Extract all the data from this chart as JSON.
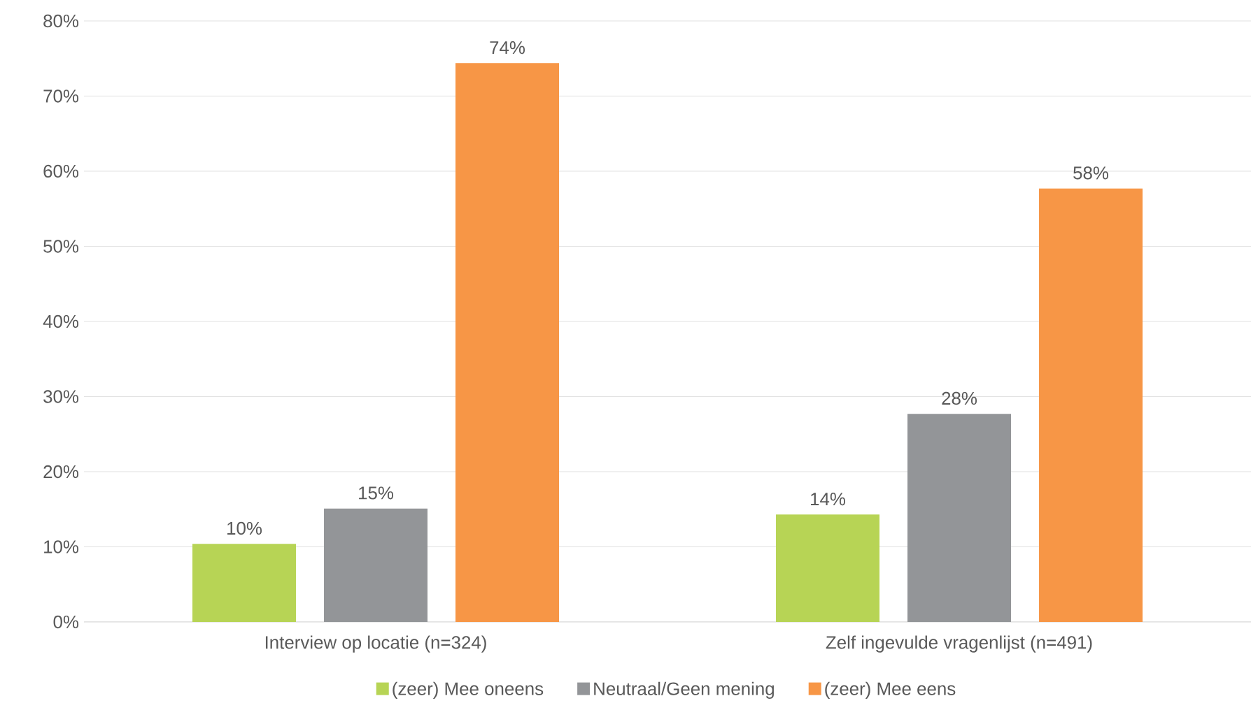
{
  "chart_data": {
    "type": "bar",
    "categories": [
      "Interview op locatie (n=324)",
      "Zelf ingevulde vragenlijst (n=491)"
    ],
    "series": [
      {
        "name": "(zeer) Mee oneens",
        "color": "#b7d455",
        "values": [
          10.4,
          14.3
        ],
        "value_labels": [
          "10%",
          "14%"
        ]
      },
      {
        "name": "Neutraal/Geen mening",
        "color": "#939598",
        "values": [
          15.1,
          27.7
        ],
        "value_labels": [
          "15%",
          "28%"
        ]
      },
      {
        "name": "(zeer) Mee eens",
        "color": "#f79646",
        "values": [
          74.4,
          57.7
        ],
        "value_labels": [
          "74%",
          "58%"
        ]
      }
    ],
    "ylim": [
      0,
      80
    ],
    "yticks": [
      {
        "value": 0,
        "label": "0%"
      },
      {
        "value": 10,
        "label": "10%"
      },
      {
        "value": 20,
        "label": "20%"
      },
      {
        "value": 30,
        "label": "30%"
      },
      {
        "value": 40,
        "label": "40%"
      },
      {
        "value": 50,
        "label": "50%"
      },
      {
        "value": 60,
        "label": "60%"
      },
      {
        "value": 70,
        "label": "70%"
      },
      {
        "value": 80,
        "label": "80%"
      }
    ],
    "grid": "y",
    "legend": "bottom"
  }
}
